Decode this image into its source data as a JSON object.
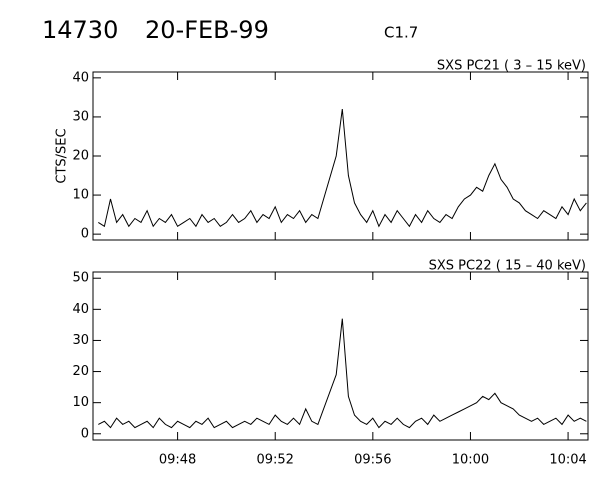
{
  "chart_data": [
    {
      "type": "line",
      "title": "14730",
      "date": "20-FEB-99",
      "flare_class": "C1.7",
      "panel_title": "SXS PC21  (  3 – 15 keV)",
      "ylabel": "CTS/SEC",
      "x": [
        "09:44:45",
        "09:45:00",
        "09:45:15",
        "09:45:30",
        "09:45:45",
        "09:46:00",
        "09:46:15",
        "09:46:30",
        "09:46:45",
        "09:47:00",
        "09:47:15",
        "09:47:30",
        "09:47:45",
        "09:48:00",
        "09:48:15",
        "09:48:30",
        "09:48:45",
        "09:49:00",
        "09:49:15",
        "09:49:30",
        "09:49:45",
        "09:50:00",
        "09:50:15",
        "09:50:30",
        "09:50:45",
        "09:51:00",
        "09:51:15",
        "09:51:30",
        "09:51:45",
        "09:52:00",
        "09:52:15",
        "09:52:30",
        "09:52:45",
        "09:53:00",
        "09:53:15",
        "09:53:30",
        "09:53:45",
        "09:54:30",
        "09:54:45",
        "09:55:00",
        "09:55:15",
        "09:55:30",
        "09:55:45",
        "09:56:00",
        "09:56:15",
        "09:56:30",
        "09:56:45",
        "09:57:00",
        "09:57:15",
        "09:57:30",
        "09:57:45",
        "09:58:00",
        "09:58:15",
        "09:58:30",
        "09:58:45",
        "09:59:00",
        "09:59:15",
        "09:59:30",
        "09:59:45",
        "10:00:00",
        "10:00:15",
        "10:00:30",
        "10:00:45",
        "10:01:00",
        "10:01:15",
        "10:01:30",
        "10:01:45",
        "10:02:00",
        "10:02:15",
        "10:02:30",
        "10:02:45",
        "10:03:00",
        "10:03:15",
        "10:03:30",
        "10:03:45",
        "10:04:00",
        "10:04:15",
        "10:04:30",
        "10:04:45"
      ],
      "values": [
        3,
        2,
        9,
        3,
        5,
        2,
        4,
        3,
        6,
        2,
        4,
        3,
        5,
        2,
        3,
        4,
        2,
        5,
        3,
        4,
        2,
        3,
        5,
        3,
        4,
        6,
        3,
        5,
        4,
        7,
        3,
        5,
        4,
        6,
        3,
        5,
        4,
        20,
        32,
        15,
        8,
        5,
        3,
        6,
        2,
        5,
        3,
        6,
        4,
        2,
        5,
        3,
        6,
        4,
        3,
        5,
        4,
        7,
        9,
        10,
        12,
        11,
        15,
        18,
        14,
        12,
        9,
        8,
        6,
        5,
        4,
        6,
        5,
        4,
        7,
        5,
        9,
        6,
        8
      ],
      "color": "#000000",
      "xlim": [
        "09:44:32",
        "10:04:49"
      ],
      "ylim": [
        -1.5,
        41.5
      ],
      "yticks": [
        0,
        10,
        20,
        30,
        40
      ]
    },
    {
      "type": "line",
      "panel_title": "SXS PC22  ( 15 – 40 keV)",
      "x": [
        "09:44:45",
        "09:45:00",
        "09:45:15",
        "09:45:30",
        "09:45:45",
        "09:46:00",
        "09:46:15",
        "09:46:30",
        "09:46:45",
        "09:47:00",
        "09:47:15",
        "09:47:30",
        "09:47:45",
        "09:48:00",
        "09:48:15",
        "09:48:30",
        "09:48:45",
        "09:49:00",
        "09:49:15",
        "09:49:30",
        "09:49:45",
        "09:50:00",
        "09:50:15",
        "09:50:30",
        "09:50:45",
        "09:51:00",
        "09:51:15",
        "09:51:30",
        "09:51:45",
        "09:52:00",
        "09:52:15",
        "09:52:30",
        "09:52:45",
        "09:53:00",
        "09:53:15",
        "09:53:30",
        "09:53:45",
        "09:54:30",
        "09:54:45",
        "09:55:00",
        "09:55:15",
        "09:55:30",
        "09:55:45",
        "09:56:00",
        "09:56:15",
        "09:56:30",
        "09:56:45",
        "09:57:00",
        "09:57:15",
        "09:57:30",
        "09:57:45",
        "09:58:00",
        "09:58:15",
        "09:58:30",
        "09:58:45",
        "09:59:00",
        "09:59:15",
        "09:59:30",
        "09:59:45",
        "10:00:00",
        "10:00:15",
        "10:00:30",
        "10:00:45",
        "10:01:00",
        "10:01:15",
        "10:01:30",
        "10:01:45",
        "10:02:00",
        "10:02:15",
        "10:02:30",
        "10:02:45",
        "10:03:00",
        "10:03:15",
        "10:03:30",
        "10:03:45",
        "10:04:00",
        "10:04:15",
        "10:04:30",
        "10:04:45"
      ],
      "values": [
        3,
        4,
        2,
        5,
        3,
        4,
        2,
        3,
        4,
        2,
        5,
        3,
        2,
        4,
        3,
        2,
        4,
        3,
        5,
        2,
        3,
        4,
        2,
        3,
        4,
        3,
        5,
        4,
        3,
        6,
        4,
        3,
        5,
        3,
        8,
        4,
        3,
        19,
        37,
        12,
        6,
        4,
        3,
        5,
        2,
        4,
        3,
        5,
        3,
        2,
        4,
        5,
        3,
        6,
        4,
        5,
        6,
        7,
        8,
        9,
        10,
        12,
        11,
        13,
        10,
        9,
        8,
        6,
        5,
        4,
        5,
        3,
        4,
        5,
        3,
        6,
        4,
        5,
        4
      ],
      "color": "#000000",
      "xlim": [
        "09:44:32",
        "10:04:49"
      ],
      "ylim": [
        -2,
        52
      ],
      "yticks": [
        0,
        10,
        20,
        30,
        40,
        50
      ],
      "xticks": [
        "09:48",
        "09:52",
        "09:56",
        "10:00",
        "10:04"
      ]
    }
  ]
}
